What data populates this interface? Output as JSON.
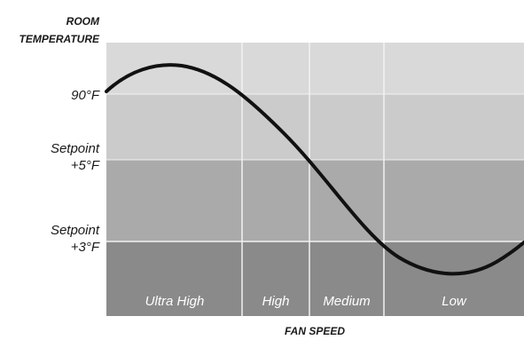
{
  "y_axis": {
    "title_line1": "ROOM",
    "title_line2": "TEMPERATURE"
  },
  "x_axis": {
    "title": "FAN SPEED"
  },
  "levels": [
    {
      "key": "temp90",
      "lines": [
        "90°F"
      ]
    },
    {
      "key": "sp5",
      "lines": [
        "Setpoint",
        "+5°F"
      ]
    },
    {
      "key": "sp3",
      "lines": [
        "Setpoint",
        "+3°F"
      ]
    }
  ],
  "fan_speeds": [
    {
      "key": "ultra-high",
      "label": "Ultra High"
    },
    {
      "key": "high",
      "label": "High"
    },
    {
      "key": "medium",
      "label": "Medium"
    },
    {
      "key": "low",
      "label": "Low"
    }
  ],
  "colors": {
    "band_top": "#d9d9d9",
    "band_upper": "#cbcbcb",
    "band_mid": "#aaaaaa",
    "band_low": "#8a8a8a",
    "divider": "#ffffff",
    "curve": "#111111"
  }
}
